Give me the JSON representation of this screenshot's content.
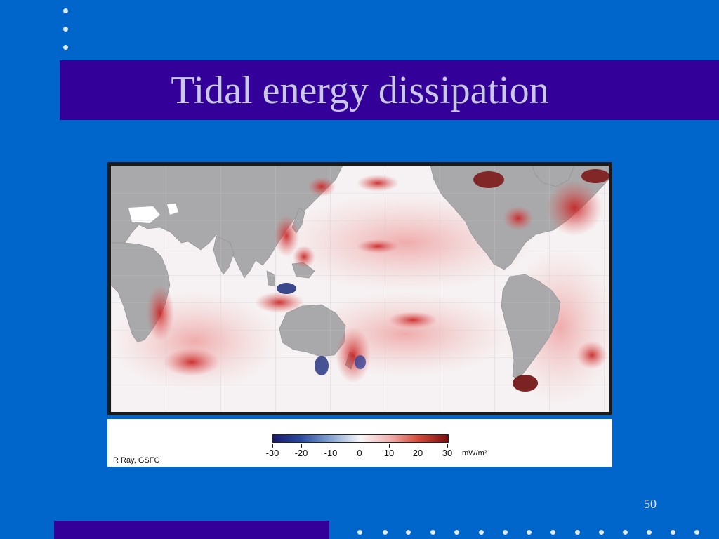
{
  "slide": {
    "title": "Tidal energy dissipation",
    "page_number": "50",
    "credit": "R Ray, GSFC",
    "colors": {
      "background": "#0066cc",
      "title_bar": "#330099",
      "title_text": "#c9c9e6",
      "map_frame": "#1a1a1a"
    }
  },
  "legend": {
    "ticks": [
      "-30",
      "-20",
      "-10",
      "0",
      "10",
      "20",
      "30"
    ],
    "unit": "mW/m²",
    "colormap": [
      "#1a1a6e",
      "#2b4a9e",
      "#7f9fd0",
      "#f7f7f7",
      "#f1b4b4",
      "#d44a3a",
      "#7a0f0f"
    ]
  }
}
